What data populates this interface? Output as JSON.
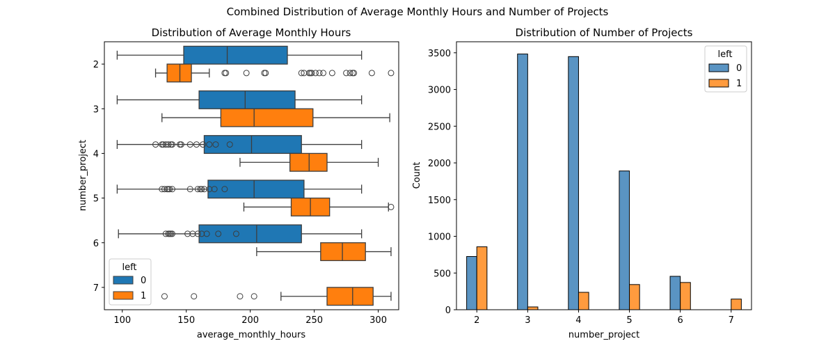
{
  "figure": {
    "suptitle": "Combined Distribution of Average Monthly Hours and Number of Projects"
  },
  "colors": {
    "left_0": "#1f77b4",
    "left_1": "#ff7f0e",
    "bar_left_0": "#5a94c3",
    "bar_left_1": "#ff9b3e",
    "box_edge": "#3d3d3d"
  },
  "chart_data": [
    {
      "type": "boxplot",
      "orientation": "horizontal",
      "title": "Distribution of Average Monthly Hours",
      "xlabel": "average_monthly_hours",
      "ylabel": "number_project",
      "xlim": [
        86,
        316
      ],
      "xticks": [
        100,
        150,
        200,
        250,
        300
      ],
      "categories": [
        "2",
        "3",
        "4",
        "5",
        "6",
        "7"
      ],
      "legend": {
        "title": "left",
        "position": "lower-left",
        "entries": [
          "0",
          "1"
        ]
      },
      "series": [
        {
          "name": "0",
          "boxes": [
            {
              "category": "2",
              "whisker_low": 96,
              "q1": 148,
              "median": 182,
              "q3": 229,
              "whisker_high": 287,
              "outliers": []
            },
            {
              "category": "3",
              "whisker_low": 96,
              "q1": 160,
              "median": 196,
              "q3": 235,
              "whisker_high": 287,
              "outliers": []
            },
            {
              "category": "4",
              "whisker_low": 96,
              "q1": 164,
              "median": 201,
              "q3": 240,
              "whisker_high": 287,
              "outliers": [
                126,
                131,
                132,
                134,
                136,
                138,
                139,
                145,
                146,
                153,
                158,
                163,
                168,
                173,
                184
              ]
            },
            {
              "category": "5",
              "whisker_low": 96,
              "q1": 167,
              "median": 203,
              "q3": 242,
              "whisker_high": 287,
              "outliers": [
                131,
                133,
                135,
                136,
                137,
                139,
                153,
                159,
                161,
                162,
                164,
                168,
                172,
                180
              ]
            },
            {
              "category": "6",
              "whisker_low": 97,
              "q1": 160,
              "median": 205,
              "q3": 240,
              "whisker_high": 287,
              "outliers": [
                134,
                136,
                137,
                138,
                139,
                151,
                155,
                159,
                162,
                166,
                175,
                189
              ]
            },
            {
              "category": "7",
              "whisker_low": null,
              "q1": null,
              "median": null,
              "q3": null,
              "whisker_high": null,
              "outliers": []
            }
          ]
        },
        {
          "name": "1",
          "boxes": [
            {
              "category": "2",
              "whisker_low": 126,
              "q1": 135,
              "median": 145,
              "q3": 154,
              "whisker_high": 168,
              "outliers": [
                180,
                181,
                197,
                211,
                212,
                240,
                242,
                246,
                247,
                248,
                251,
                254,
                257,
                264,
                275,
                278,
                280,
                281,
                295,
                310
              ]
            },
            {
              "category": "3",
              "whisker_low": 131,
              "q1": 177,
              "median": 203,
              "q3": 249,
              "whisker_high": 309,
              "outliers": []
            },
            {
              "category": "4",
              "whisker_low": 192,
              "q1": 231,
              "median": 246,
              "q3": 260,
              "whisker_high": 300,
              "outliers": []
            },
            {
              "category": "5",
              "whisker_low": 195,
              "q1": 232,
              "median": 247,
              "q3": 262,
              "whisker_high": 308,
              "outliers": [
                310
              ]
            },
            {
              "category": "6",
              "whisker_low": 205,
              "q1": 255,
              "median": 272,
              "q3": 290,
              "whisker_high": 310,
              "outliers": []
            },
            {
              "category": "7",
              "whisker_low": 224,
              "q1": 260,
              "median": 280,
              "q3": 296,
              "whisker_high": 310,
              "outliers": [
                133,
                156,
                192,
                203
              ]
            }
          ]
        }
      ]
    },
    {
      "type": "bar",
      "title": "Distribution of Number of Projects",
      "xlabel": "number_project",
      "ylabel": "Count",
      "ylim": [
        0,
        3650
      ],
      "yticks": [
        0,
        500,
        1000,
        1500,
        2000,
        2500,
        3000,
        3500
      ],
      "categories": [
        "2",
        "3",
        "4",
        "5",
        "6",
        "7"
      ],
      "legend": {
        "title": "left",
        "position": "upper-right",
        "entries": [
          "0",
          "1"
        ]
      },
      "series": [
        {
          "name": "0",
          "values": [
            725,
            3483,
            3448,
            1890,
            455,
            0
          ]
        },
        {
          "name": "1",
          "values": [
            857,
            38,
            237,
            343,
            371,
            145
          ]
        }
      ]
    }
  ]
}
